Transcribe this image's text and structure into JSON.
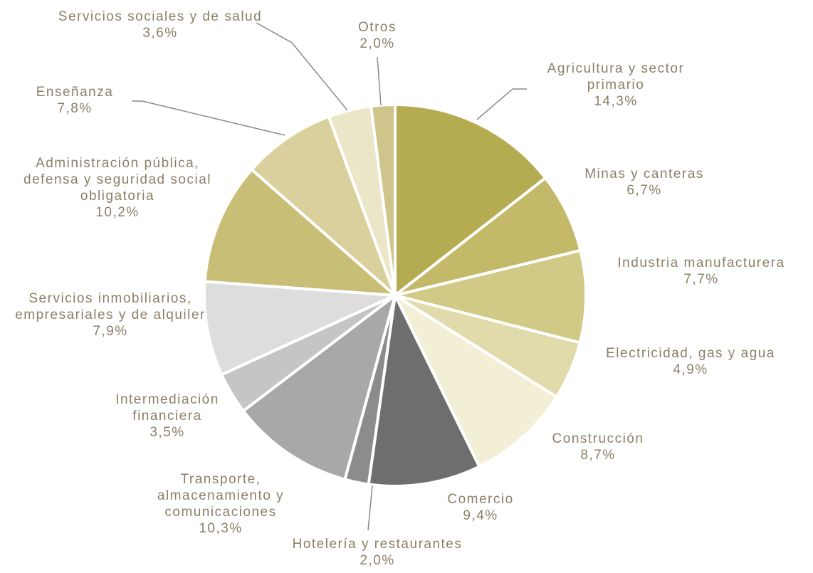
{
  "chart_data": {
    "type": "pie",
    "categories": [
      "Agricultura y sector primario",
      "Minas y canteras",
      "Industria manufacturera",
      "Electricidad, gas y agua",
      "Construcción",
      "Comercio",
      "Hotelería y restaurantes",
      "Transporte, almacenamiento y comunicaciones",
      "Intermediación financiera",
      "Servicios inmobiliarios, empresariales y de alquiler",
      "Administración pública, defensa y seguridad social obligatoria",
      "Enseñanza",
      "Servicios sociales y de salud",
      "Otros"
    ],
    "values": [
      14.3,
      6.7,
      7.7,
      4.9,
      8.7,
      9.4,
      2.0,
      10.3,
      3.5,
      7.9,
      10.2,
      7.8,
      3.6,
      2.0
    ],
    "value_labels": [
      "14,3%",
      "6,7%",
      "7,7%",
      "4,9%",
      "8,7%",
      "9,4%",
      "2,0%",
      "10,3%",
      "3,5%",
      "7,9%",
      "10,2%",
      "7,8%",
      "3,6%",
      "2,0%"
    ],
    "colors": [
      "#b5ac52",
      "#c3b968",
      "#d1c986",
      "#e1daab",
      "#f3efd6",
      "#6e6e6e",
      "#8c8c8c",
      "#a8a8a8",
      "#c5c5c5",
      "#dddddd",
      "#c8be75",
      "#d9d09d",
      "#ece6c8",
      "#cfc48a"
    ]
  }
}
